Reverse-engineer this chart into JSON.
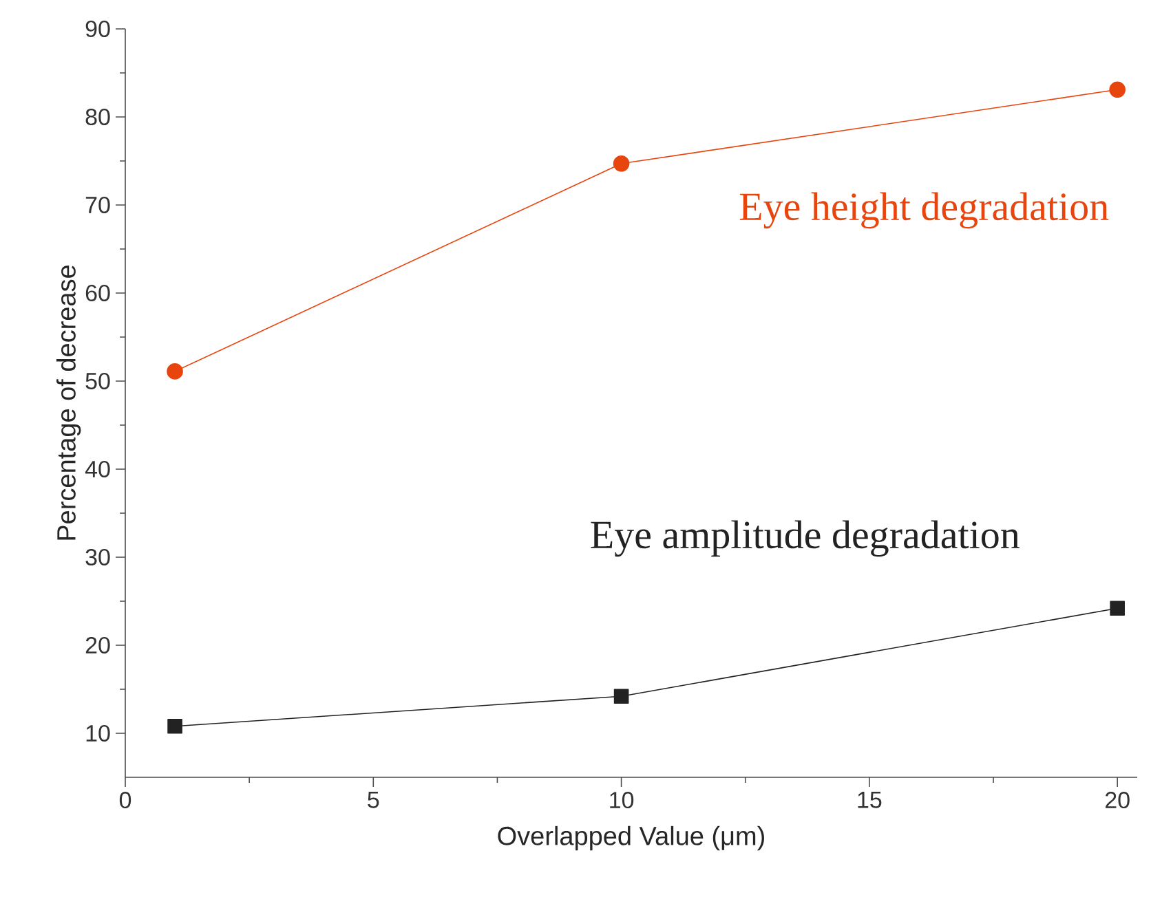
{
  "chart_data": {
    "type": "line",
    "xlabel": "Overlapped Value (μm)",
    "ylabel": "Percentage of decrease",
    "x": [
      1,
      10,
      20
    ],
    "series": [
      {
        "name": "Eye height degradation",
        "color": "#e8440e",
        "marker": "circle",
        "values": [
          51.1,
          74.7,
          83.1
        ]
      },
      {
        "name": "Eye amplitude degradation",
        "color": "#222222",
        "marker": "square",
        "values": [
          10.8,
          14.2,
          24.2
        ]
      }
    ],
    "xlim": [
      0,
      20.4
    ],
    "ylim": [
      5,
      90
    ],
    "xticks": [
      0,
      5,
      10,
      15,
      20
    ],
    "yticks": [
      10,
      20,
      30,
      40,
      50,
      60,
      70,
      80,
      90
    ],
    "grid": false,
    "legend": false,
    "line_style": "solid"
  }
}
